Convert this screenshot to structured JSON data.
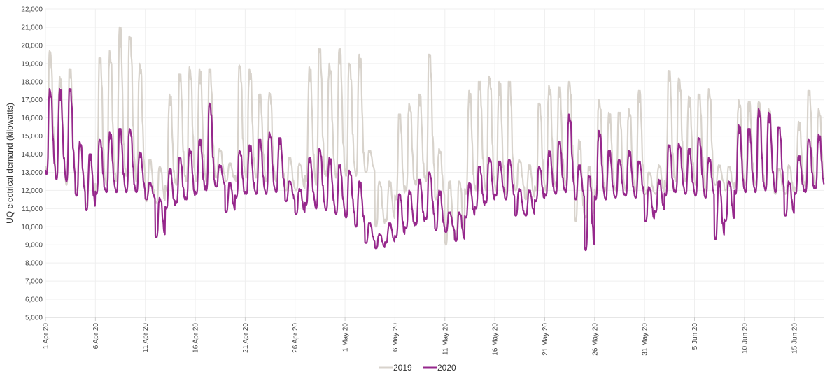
{
  "chart_data": {
    "type": "line",
    "title": "",
    "xlabel": "",
    "ylabel": "UQ electrical demand (kilowatts)",
    "ylim": [
      5000,
      22000
    ],
    "yticks": [
      5000,
      6000,
      7000,
      8000,
      9000,
      10000,
      11000,
      12000,
      13000,
      14000,
      15000,
      16000,
      17000,
      18000,
      19000,
      20000,
      21000,
      22000
    ],
    "ytick_labels": [
      "5,000",
      "6,000",
      "7,000",
      "8,000",
      "9,000",
      "10,000",
      "11,000",
      "12,000",
      "13,000",
      "14,000",
      "15,000",
      "16,000",
      "17,000",
      "18,000",
      "19,000",
      "20,000",
      "21,000",
      "22,000"
    ],
    "xrange_days": [
      0,
      78
    ],
    "xticks": [
      0,
      5,
      10,
      15,
      20,
      25,
      30,
      35,
      40,
      45,
      50,
      55,
      60,
      65,
      70,
      75
    ],
    "xtick_labels": [
      "1 Apr 20",
      "6 Apr 20",
      "11 Apr 20",
      "16 Apr 20",
      "21 Apr 20",
      "26 Apr 20",
      "1 May 20",
      "6 May 20",
      "11 May 20",
      "16 May 20",
      "21 May 20",
      "26 May 20",
      "31 May 20",
      "5 Jun 20",
      "10 Jun 20",
      "15 Jun 20"
    ],
    "grid": true,
    "legend_position": "bottom-center",
    "series": [
      {
        "name": "2019",
        "color": "#d8d3cc",
        "daily": [
          {
            "date": "1 Apr 20",
            "min": 13000,
            "max": 19700
          },
          {
            "date": "2 Apr 20",
            "min": 12700,
            "max": 18300
          },
          {
            "date": "3 Apr 20",
            "min": 12300,
            "max": 18700
          },
          {
            "date": "4 Apr 20",
            "min": 12000,
            "max": 14500
          },
          {
            "date": "5 Apr 20",
            "min": 11200,
            "max": 14000
          },
          {
            "date": "6 Apr 20",
            "min": 12000,
            "max": 19300
          },
          {
            "date": "7 Apr 20",
            "min": 12300,
            "max": 19700
          },
          {
            "date": "8 Apr 20",
            "min": 12500,
            "max": 21000
          },
          {
            "date": "9 Apr 20",
            "min": 12800,
            "max": 20500
          },
          {
            "date": "10 Apr 20",
            "min": 12500,
            "max": 19000
          },
          {
            "date": "11 Apr 20",
            "min": 11400,
            "max": 13700
          },
          {
            "date": "12 Apr 20",
            "min": 11300,
            "max": 13300
          },
          {
            "date": "13 Apr 20",
            "min": 12000,
            "max": 17300
          },
          {
            "date": "14 Apr 20",
            "min": 12300,
            "max": 18400
          },
          {
            "date": "15 Apr 20",
            "min": 12500,
            "max": 18800
          },
          {
            "date": "16 Apr 20",
            "min": 12500,
            "max": 18700
          },
          {
            "date": "17 Apr 20",
            "min": 12500,
            "max": 18700
          },
          {
            "date": "18 Apr 20",
            "min": 12700,
            "max": 14300
          },
          {
            "date": "19 Apr 20",
            "min": 12500,
            "max": 13500
          },
          {
            "date": "20 Apr 20",
            "min": 12500,
            "max": 18900
          },
          {
            "date": "21 Apr 20",
            "min": 12700,
            "max": 18700
          },
          {
            "date": "22 Apr 20",
            "min": 12700,
            "max": 17300
          },
          {
            "date": "23 Apr 20",
            "min": 12500,
            "max": 17400
          },
          {
            "date": "24 Apr 20",
            "min": 12500,
            "max": 14500
          },
          {
            "date": "25 Apr 20",
            "min": 12000,
            "max": 13800
          },
          {
            "date": "26 Apr 20",
            "min": 12000,
            "max": 13500
          },
          {
            "date": "27 Apr 20",
            "min": 12500,
            "max": 18800
          },
          {
            "date": "28 Apr 20",
            "min": 12300,
            "max": 19800
          },
          {
            "date": "29 Apr 20",
            "min": 12800,
            "max": 19000
          },
          {
            "date": "30 Apr 20",
            "min": 12700,
            "max": 19800
          },
          {
            "date": "1 May 20",
            "min": 12800,
            "max": 19000
          },
          {
            "date": "2 May 20",
            "min": 12800,
            "max": 19500
          },
          {
            "date": "3 May 20",
            "min": 13000,
            "max": 14200
          },
          {
            "date": "4 May 20",
            "min": 10000,
            "max": 12500
          },
          {
            "date": "5 May 20",
            "min": 10300,
            "max": 12500
          },
          {
            "date": "6 May 20",
            "min": 11500,
            "max": 16200
          },
          {
            "date": "7 May 20",
            "min": 12000,
            "max": 16800
          },
          {
            "date": "8 May 20",
            "min": 12300,
            "max": 17300
          },
          {
            "date": "9 May 20",
            "min": 12500,
            "max": 19500
          },
          {
            "date": "10 May 20",
            "min": 11500,
            "max": 14300
          },
          {
            "date": "11 May 20",
            "min": 9000,
            "max": 12500
          },
          {
            "date": "12 May 20",
            "min": 9500,
            "max": 12500
          },
          {
            "date": "13 May 20",
            "min": 11800,
            "max": 17500
          },
          {
            "date": "14 May 20",
            "min": 12000,
            "max": 18000
          },
          {
            "date": "15 May 20",
            "min": 12000,
            "max": 18300
          },
          {
            "date": "16 May 20",
            "min": 12000,
            "max": 18000
          },
          {
            "date": "17 May 20",
            "min": 11800,
            "max": 18000
          },
          {
            "date": "18 May 20",
            "min": 12000,
            "max": 13700
          },
          {
            "date": "19 May 20",
            "min": 11500,
            "max": 13400
          },
          {
            "date": "20 May 20",
            "min": 12000,
            "max": 16800
          },
          {
            "date": "21 May 20",
            "min": 12000,
            "max": 17800
          },
          {
            "date": "22 May 20",
            "min": 12200,
            "max": 17700
          },
          {
            "date": "23 May 20",
            "min": 12300,
            "max": 18000
          },
          {
            "date": "24 May 20",
            "min": 10300,
            "max": 14800
          },
          {
            "date": "25 May 20",
            "min": 10500,
            "max": 13300
          },
          {
            "date": "26 May 20",
            "min": 11800,
            "max": 17000
          },
          {
            "date": "27 May 20",
            "min": 12000,
            "max": 16300
          },
          {
            "date": "28 May 20",
            "min": 12000,
            "max": 16300
          },
          {
            "date": "29 May 20",
            "min": 12000,
            "max": 16500
          },
          {
            "date": "30 May 20",
            "min": 12000,
            "max": 17500
          },
          {
            "date": "31 May 20",
            "min": 11800,
            "max": 13000
          },
          {
            "date": "1 Jun 20",
            "min": 11800,
            "max": 13400
          },
          {
            "date": "2 Jun 20",
            "min": 12200,
            "max": 18600
          },
          {
            "date": "3 Jun 20",
            "min": 12500,
            "max": 18200
          },
          {
            "date": "4 Jun 20",
            "min": 12500,
            "max": 17200
          },
          {
            "date": "5 Jun 20",
            "min": 12300,
            "max": 17300
          },
          {
            "date": "6 Jun 20",
            "min": 12000,
            "max": 17600
          },
          {
            "date": "7 Jun 20",
            "min": 12300,
            "max": 13400
          },
          {
            "date": "8 Jun 20",
            "min": 12000,
            "max": 13300
          },
          {
            "date": "9 Jun 20",
            "min": 12200,
            "max": 17000
          },
          {
            "date": "10 Jun 20",
            "min": 12300,
            "max": 16900
          },
          {
            "date": "11 Jun 20",
            "min": 12300,
            "max": 16900
          },
          {
            "date": "12 Jun 20",
            "min": 12200,
            "max": 16500
          },
          {
            "date": "13 Jun 20",
            "min": 11800,
            "max": 13200
          },
          {
            "date": "14 Jun 20",
            "min": 11800,
            "max": 13400
          },
          {
            "date": "15 Jun 20",
            "min": 12000,
            "max": 15800
          },
          {
            "date": "16 Jun 20",
            "min": 12200,
            "max": 17500
          },
          {
            "date": "17 Jun 20",
            "min": 12300,
            "max": 16500
          }
        ]
      },
      {
        "name": "2020",
        "color": "#96288c",
        "daily": [
          {
            "date": "1 Apr 20",
            "min": 12900,
            "max": 17600
          },
          {
            "date": "2 Apr 20",
            "min": 12600,
            "max": 17600
          },
          {
            "date": "3 Apr 20",
            "min": 12500,
            "max": 17600
          },
          {
            "date": "4 Apr 20",
            "min": 11700,
            "max": 14700
          },
          {
            "date": "5 Apr 20",
            "min": 10900,
            "max": 14000
          },
          {
            "date": "6 Apr 20",
            "min": 11800,
            "max": 14800
          },
          {
            "date": "7 Apr 20",
            "min": 11900,
            "max": 15200
          },
          {
            "date": "8 Apr 20",
            "min": 11900,
            "max": 15400
          },
          {
            "date": "9 Apr 20",
            "min": 11900,
            "max": 15400
          },
          {
            "date": "10 Apr 20",
            "min": 11900,
            "max": 14100
          },
          {
            "date": "11 Apr 20",
            "min": 11500,
            "max": 12400
          },
          {
            "date": "12 Apr 20",
            "min": 9400,
            "max": 11600
          },
          {
            "date": "13 Apr 20",
            "min": 11000,
            "max": 13200
          },
          {
            "date": "14 Apr 20",
            "min": 11300,
            "max": 13800
          },
          {
            "date": "15 Apr 20",
            "min": 11500,
            "max": 14300
          },
          {
            "date": "16 Apr 20",
            "min": 11800,
            "max": 14800
          },
          {
            "date": "17 Apr 20",
            "min": 12000,
            "max": 16800
          },
          {
            "date": "18 Apr 20",
            "min": 12200,
            "max": 13400
          },
          {
            "date": "19 Apr 20",
            "min": 10800,
            "max": 12400
          },
          {
            "date": "20 Apr 20",
            "min": 11600,
            "max": 14200
          },
          {
            "date": "21 Apr 20",
            "min": 11800,
            "max": 14500
          },
          {
            "date": "22 Apr 20",
            "min": 11800,
            "max": 14800
          },
          {
            "date": "23 Apr 20",
            "min": 11800,
            "max": 15200
          },
          {
            "date": "24 Apr 20",
            "min": 11900,
            "max": 14900
          },
          {
            "date": "25 Apr 20",
            "min": 11400,
            "max": 12500
          },
          {
            "date": "26 Apr 20",
            "min": 10700,
            "max": 12100
          },
          {
            "date": "27 Apr 20",
            "min": 11200,
            "max": 13800
          },
          {
            "date": "28 Apr 20",
            "min": 11000,
            "max": 14300
          },
          {
            "date": "29 Apr 20",
            "min": 10900,
            "max": 13800
          },
          {
            "date": "30 Apr 20",
            "min": 10700,
            "max": 13400
          },
          {
            "date": "1 May 20",
            "min": 10500,
            "max": 13100
          },
          {
            "date": "2 May 20",
            "min": 10000,
            "max": 12500
          },
          {
            "date": "3 May 20",
            "min": 9100,
            "max": 10200
          },
          {
            "date": "4 May 20",
            "min": 8800,
            "max": 9600
          },
          {
            "date": "5 May 20",
            "min": 9100,
            "max": 10200
          },
          {
            "date": "6 May 20",
            "min": 9400,
            "max": 11800
          },
          {
            "date": "7 May 20",
            "min": 9900,
            "max": 12000
          },
          {
            "date": "8 May 20",
            "min": 10100,
            "max": 12600
          },
          {
            "date": "9 May 20",
            "min": 10400,
            "max": 13000
          },
          {
            "date": "10 May 20",
            "min": 9800,
            "max": 12000
          },
          {
            "date": "11 May 20",
            "min": 9700,
            "max": 10800
          },
          {
            "date": "12 May 20",
            "min": 9200,
            "max": 10800
          },
          {
            "date": "13 May 20",
            "min": 10500,
            "max": 12400
          },
          {
            "date": "14 May 20",
            "min": 11000,
            "max": 13300
          },
          {
            "date": "15 May 20",
            "min": 11300,
            "max": 13800
          },
          {
            "date": "16 May 20",
            "min": 11700,
            "max": 13600
          },
          {
            "date": "17 May 20",
            "min": 11500,
            "max": 13700
          },
          {
            "date": "18 May 20",
            "min": 10600,
            "max": 12100
          },
          {
            "date": "19 May 20",
            "min": 10600,
            "max": 12000
          },
          {
            "date": "20 May 20",
            "min": 11400,
            "max": 13300
          },
          {
            "date": "21 May 20",
            "min": 11700,
            "max": 14200
          },
          {
            "date": "22 May 20",
            "min": 11800,
            "max": 14700
          },
          {
            "date": "23 May 20",
            "min": 11900,
            "max": 16200
          },
          {
            "date": "24 May 20",
            "min": 11500,
            "max": 13400
          },
          {
            "date": "25 May 20",
            "min": 8700,
            "max": 12800
          },
          {
            "date": "26 May 20",
            "min": 11500,
            "max": 15300
          },
          {
            "date": "27 May 20",
            "min": 11500,
            "max": 14200
          },
          {
            "date": "28 May 20",
            "min": 11600,
            "max": 13700
          },
          {
            "date": "29 May 20",
            "min": 11700,
            "max": 14200
          },
          {
            "date": "30 May 20",
            "min": 11600,
            "max": 13600
          },
          {
            "date": "31 May 20",
            "min": 10300,
            "max": 12200
          },
          {
            "date": "1 Jun 20",
            "min": 10800,
            "max": 12600
          },
          {
            "date": "2 Jun 20",
            "min": 11700,
            "max": 14500
          },
          {
            "date": "3 Jun 20",
            "min": 11900,
            "max": 14600
          },
          {
            "date": "4 Jun 20",
            "min": 11800,
            "max": 14300
          },
          {
            "date": "5 Jun 20",
            "min": 11700,
            "max": 14900
          },
          {
            "date": "6 Jun 20",
            "min": 11600,
            "max": 13800
          },
          {
            "date": "7 Jun 20",
            "min": 9300,
            "max": 12500
          },
          {
            "date": "8 Jun 20",
            "min": 10300,
            "max": 12500
          },
          {
            "date": "9 Jun 20",
            "min": 11800,
            "max": 15600
          },
          {
            "date": "10 Jun 20",
            "min": 11900,
            "max": 15400
          },
          {
            "date": "11 Jun 20",
            "min": 11900,
            "max": 16500
          },
          {
            "date": "12 Jun 20",
            "min": 12000,
            "max": 16300
          },
          {
            "date": "13 Jun 20",
            "min": 11900,
            "max": 15500
          },
          {
            "date": "14 Jun 20",
            "min": 10600,
            "max": 12500
          },
          {
            "date": "15 Jun 20",
            "min": 11800,
            "max": 13900
          },
          {
            "date": "16 Jun 20",
            "min": 11900,
            "max": 14800
          },
          {
            "date": "17 Jun 20",
            "min": 12100,
            "max": 15100
          }
        ]
      }
    ]
  }
}
